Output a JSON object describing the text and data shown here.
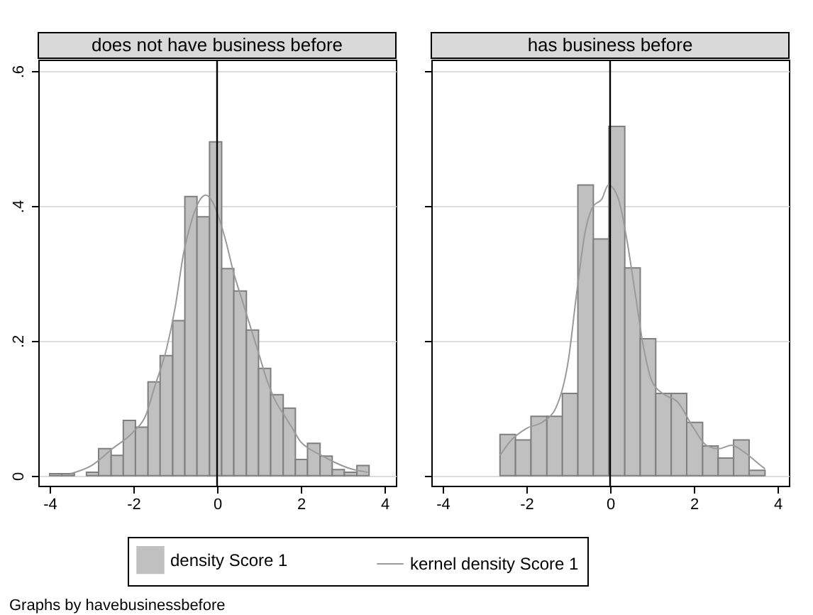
{
  "chart_data": [
    {
      "type": "histogram",
      "title": "does not have business before",
      "bins": [
        -4,
        -3.71,
        -3.41,
        -3.12,
        -2.83,
        -2.53,
        -2.24,
        -1.95,
        -1.65,
        -1.36,
        -1.06,
        -0.77,
        -0.48,
        -0.18,
        0.11,
        0.4,
        0.7,
        0.99,
        1.28,
        1.58,
        1.87,
        2.16,
        2.46,
        2.75,
        3.04,
        3.34,
        3.63
      ],
      "series": [
        {
          "name": "density Score 1",
          "type": "histogram",
          "color": "#c0c0c0",
          "values": [
            0.003,
            0.003,
            0,
            0.005,
            0.04,
            0.03,
            0.082,
            0.072,
            0.139,
            0.178,
            0.23,
            0.414,
            0.384,
            0.495,
            0.307,
            0.274,
            0.216,
            0.159,
            0.12,
            0.1,
            0.024,
            0.048,
            0.029,
            0.009,
            0.005,
            0.015
          ]
        },
        {
          "name": "kernel density Score 1",
          "type": "line",
          "color": "#9a9a9a",
          "x": [
            -3.5,
            -3,
            -2.5,
            -2,
            -1.7,
            -1.5,
            -1.2,
            -1,
            -0.8,
            -0.6,
            -0.4,
            -0.27,
            -0.1,
            0,
            0.2,
            0.4,
            0.6,
            0.8,
            1,
            1.2,
            1.4,
            1.6,
            1.8,
            2,
            2.2,
            2.5,
            2.8,
            3.2,
            3.6
          ],
          "values": [
            0.003,
            0.015,
            0.04,
            0.065,
            0.09,
            0.13,
            0.19,
            0.25,
            0.33,
            0.38,
            0.41,
            0.416,
            0.405,
            0.39,
            0.35,
            0.3,
            0.26,
            0.22,
            0.18,
            0.14,
            0.11,
            0.09,
            0.07,
            0.05,
            0.04,
            0.03,
            0.02,
            0.01,
            0.005
          ]
        }
      ],
      "xlim": [
        -4.27,
        4.27
      ],
      "ylim": [
        -0.015,
        0.617
      ],
      "xticks": [
        -4,
        -2,
        0,
        2,
        4
      ],
      "yticks": [
        0,
        {
          "value": 0.2,
          "label": ".2"
        },
        {
          "value": 0.4,
          "label": ".4"
        },
        {
          "value": 0.6,
          "label": ".6"
        }
      ],
      "grid": "y",
      "legend": "bottom",
      "ref_lines": [
        {
          "axis": "x",
          "value": 0,
          "color": "#000000"
        }
      ],
      "annotations": [
        "Graphs by havebusinessbefore"
      ]
    },
    {
      "type": "histogram",
      "title": "has business before",
      "bins": [
        -2.63,
        -2.26,
        -1.89,
        -1.51,
        -1.14,
        -0.77,
        -0.4,
        -0.03,
        0.35,
        0.72,
        1.09,
        1.46,
        1.83,
        2.21,
        2.58,
        2.95,
        3.32,
        3.7
      ],
      "series": [
        {
          "name": "density Score 1",
          "type": "histogram",
          "color": "#c0c0c0",
          "values": [
            0.061,
            0.053,
            0.088,
            0.088,
            0.122,
            0.431,
            0.351,
            0.518,
            0.308,
            0.203,
            0.122,
            0.122,
            0.079,
            0.044,
            0.026,
            0.053,
            0.008
          ]
        },
        {
          "name": "kernel density Score 1",
          "type": "line",
          "color": "#9a9a9a",
          "x": [
            -2.63,
            -2.4,
            -2,
            -1.6,
            -1.3,
            -1,
            -0.8,
            -0.6,
            -0.4,
            -0.2,
            -0.04,
            0.2,
            0.4,
            0.6,
            0.8,
            1,
            1.3,
            1.6,
            2,
            2.3,
            2.6,
            2.9,
            3.2,
            3.5,
            3.7
          ],
          "values": [
            0.03,
            0.05,
            0.07,
            0.08,
            0.1,
            0.17,
            0.27,
            0.36,
            0.4,
            0.41,
            0.431,
            0.41,
            0.35,
            0.27,
            0.19,
            0.14,
            0.12,
            0.11,
            0.07,
            0.045,
            0.04,
            0.045,
            0.035,
            0.02,
            0.01
          ]
        }
      ],
      "xlim": [
        -4.27,
        4.27
      ],
      "ylim": [
        -0.015,
        0.617
      ],
      "xticks": [
        -4,
        -2,
        0,
        2,
        4
      ],
      "yticks": [
        {
          "value": 0,
          "label": null
        },
        {
          "value": 0.2,
          "label": null
        },
        {
          "value": 0.4,
          "label": null
        },
        {
          "value": 0.6,
          "label": null
        }
      ],
      "grid": "y",
      "legend": "bottom",
      "tick_labels": "x",
      "ref_lines": [
        {
          "axis": "x",
          "value": 0,
          "color": "#000000"
        }
      ]
    }
  ]
}
